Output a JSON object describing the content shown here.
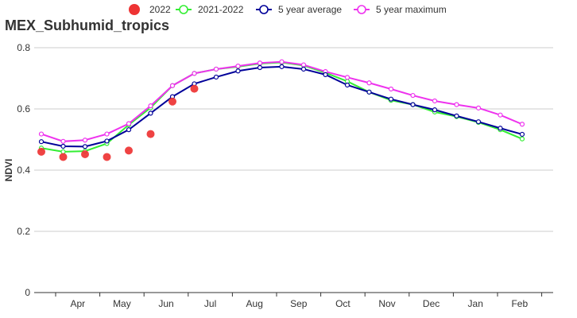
{
  "chart_data": {
    "type": "line",
    "title": "MEX_Subhumid_tropics",
    "ylabel": "NDVI",
    "xlabel": "",
    "ylim": [
      0,
      0.8
    ],
    "yticks": [
      0,
      0.2,
      0.4,
      0.6,
      0.8
    ],
    "ytick_labels": [
      "0",
      "0.2",
      "0.4",
      "0.6",
      "0.8"
    ],
    "month_labels": [
      "Apr",
      "May",
      "Jun",
      "Jul",
      "Aug",
      "Sep",
      "Oct",
      "Nov",
      "Dec",
      "Jan",
      "Feb"
    ],
    "grid": "horizontal",
    "legend_position": "top",
    "series": [
      {
        "name": "2022",
        "kind": "scatter",
        "color": "#ee3333",
        "values": [
          0.46,
          0.443,
          0.452,
          0.443,
          0.464,
          0.518,
          0.624,
          0.666
        ]
      },
      {
        "name": "2021-2022",
        "kind": "line",
        "color": "#33ee33",
        "values": [
          0.472,
          0.46,
          0.462,
          0.487,
          0.548,
          0.604,
          0.676,
          0.716,
          0.73,
          0.738,
          0.748,
          0.752,
          0.742,
          0.718,
          0.69,
          0.655,
          0.628,
          0.614,
          0.59,
          0.575,
          0.556,
          0.532,
          0.502
        ]
      },
      {
        "name": "5 year average",
        "kind": "line",
        "color": "#000099",
        "values": [
          0.493,
          0.478,
          0.477,
          0.495,
          0.532,
          0.586,
          0.64,
          0.682,
          0.704,
          0.724,
          0.735,
          0.738,
          0.73,
          0.712,
          0.678,
          0.655,
          0.632,
          0.614,
          0.597,
          0.577,
          0.558,
          0.537,
          0.517
        ]
      },
      {
        "name": "5 year maximum",
        "kind": "line",
        "color": "#ee33ee",
        "values": [
          0.518,
          0.494,
          0.498,
          0.518,
          0.552,
          0.61,
          0.676,
          0.716,
          0.73,
          0.74,
          0.75,
          0.754,
          0.744,
          0.722,
          0.703,
          0.685,
          0.665,
          0.644,
          0.626,
          0.614,
          0.603,
          0.58,
          0.55
        ]
      }
    ]
  }
}
